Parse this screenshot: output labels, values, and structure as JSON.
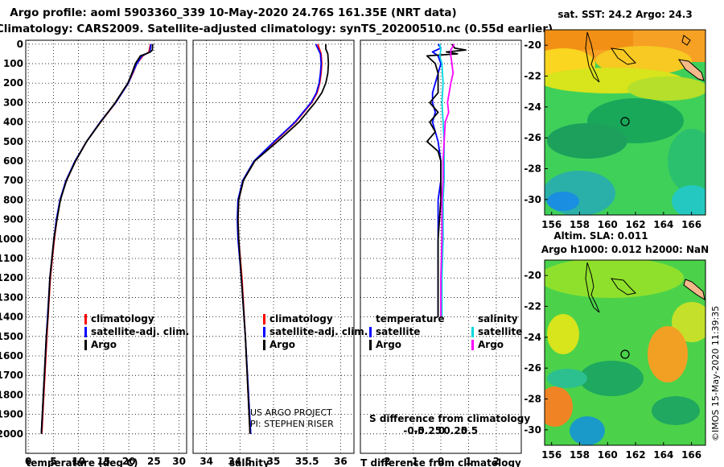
{
  "titles": {
    "line1": "Argo profile: aoml 5903360_339 10-May-2020 24.76S 161.35E (NRT data)",
    "line2": "Climatology: CARS2009. Satellite-adjusted climatology: synTS_20200510.nc (0.55d earlier)"
  },
  "colors": {
    "climatology": "#ff0000",
    "satellite": "#0000ff",
    "argo": "#000000",
    "sal_satellite": "#00d8e0",
    "sal_argo": "#ff00ff"
  },
  "chart_data": [
    {
      "type": "line",
      "title": "",
      "xlabel": "temperature (deg C)",
      "ylabel": "",
      "xlim": [
        -0.5,
        31.5
      ],
      "ylim": [
        2100,
        -20
      ],
      "xticks": [
        0,
        5,
        10,
        15,
        20,
        25,
        30
      ],
      "yticks": [
        0,
        100,
        200,
        300,
        400,
        500,
        600,
        700,
        800,
        900,
        1000,
        1100,
        1200,
        1300,
        1400,
        1500,
        1600,
        1700,
        1800,
        1900,
        2000
      ],
      "legend": [
        "climatology",
        "satellite-adj. clim.",
        "Argo"
      ],
      "series": [
        {
          "name": "climatology",
          "depth": [
            0,
            40,
            60,
            100,
            150,
            200,
            300,
            400,
            500,
            600,
            700,
            800,
            900,
            1000,
            1100,
            1200,
            1500,
            2000
          ],
          "values": [
            24.3,
            24.0,
            22.8,
            21.6,
            20.8,
            19.9,
            17.4,
            14.4,
            11.6,
            9.4,
            7.6,
            6.3,
            5.7,
            5.2,
            4.8,
            4.4,
            3.7,
            2.7
          ]
        },
        {
          "name": "satellite-adj. clim.",
          "depth": [
            0,
            40,
            60,
            100,
            150,
            200,
            300,
            400,
            500,
            600,
            700,
            800,
            900,
            1000,
            1100,
            1200,
            1500,
            2000
          ],
          "values": [
            24.4,
            24.2,
            22.6,
            21.6,
            20.7,
            19.9,
            17.4,
            14.3,
            11.6,
            9.3,
            7.5,
            6.3,
            5.6,
            5.1,
            4.7,
            4.3,
            3.6,
            2.6
          ]
        },
        {
          "name": "Argo",
          "depth": [
            0,
            10,
            30,
            40,
            50,
            60,
            100,
            150,
            200,
            300,
            400,
            500,
            600,
            700,
            800,
            900,
            1000,
            1100,
            1200,
            1400,
            1500,
            2000
          ],
          "values": [
            24.8,
            24.7,
            24.7,
            24.3,
            23.4,
            22.3,
            21.3,
            20.6,
            19.8,
            17.3,
            14.4,
            11.6,
            9.4,
            7.6,
            6.4,
            5.7,
            5.1,
            4.7,
            4.3,
            3.9,
            3.6,
            2.6
          ]
        }
      ]
    },
    {
      "type": "line",
      "title": "",
      "xlabel": "salinity",
      "ylabel": "",
      "xlim": [
        33.8,
        36.2
      ],
      "ylim": [
        2100,
        -20
      ],
      "xticks": [
        34,
        34.5,
        35,
        35.5,
        36
      ],
      "legend": [
        "climatology",
        "satellite-adj. clim.",
        "Argo"
      ],
      "annotation": [
        "US ARGO PROJECT",
        "PI: STEPHEN RISER"
      ],
      "series": [
        {
          "name": "climatology",
          "depth": [
            0,
            50,
            100,
            150,
            200,
            250,
            300,
            400,
            500,
            600,
            700,
            800,
            900,
            1000,
            1200,
            1500,
            2000
          ],
          "values": [
            35.66,
            35.71,
            35.72,
            35.71,
            35.69,
            35.65,
            35.57,
            35.33,
            35.02,
            34.72,
            34.55,
            34.48,
            34.47,
            34.48,
            34.53,
            34.58,
            34.65
          ]
        },
        {
          "name": "satellite-adj. clim.",
          "depth": [
            0,
            50,
            100,
            150,
            200,
            250,
            300,
            400,
            500,
            600,
            700,
            800,
            900,
            1000,
            1200,
            1500,
            2000
          ],
          "values": [
            35.63,
            35.7,
            35.71,
            35.7,
            35.68,
            35.64,
            35.56,
            35.32,
            35.01,
            34.71,
            34.54,
            34.47,
            34.46,
            34.47,
            34.52,
            34.58,
            34.66
          ]
        },
        {
          "name": "Argo",
          "depth": [
            0,
            25,
            50,
            100,
            150,
            200,
            250,
            300,
            400,
            500,
            600,
            700,
            800,
            900,
            1000,
            1200,
            1500,
            2000
          ],
          "values": [
            35.78,
            35.78,
            35.81,
            35.82,
            35.81,
            35.78,
            35.72,
            35.62,
            35.38,
            35.06,
            34.72,
            34.55,
            34.48,
            34.47,
            34.48,
            34.52,
            34.58,
            34.65
          ]
        }
      ]
    },
    {
      "type": "line",
      "title": "",
      "xlabel": "T difference from climatology",
      "ylabel": "",
      "xlim": [
        -2.9,
        2.9
      ],
      "ylim": [
        2100,
        -20
      ],
      "xticks": [
        -2,
        -1,
        0,
        1,
        2
      ],
      "top_xlabel": "S difference from climatology",
      "top_xticks": [
        "-0.5",
        "-0.25",
        "0",
        "0.25",
        "0.5"
      ],
      "legend": [
        "temperature",
        "satellite",
        "Argo",
        "salinity",
        "satellite",
        "Argo"
      ],
      "series": [
        {
          "name": "T satellite",
          "depth": [
            0,
            20,
            40,
            60,
            100,
            150,
            200,
            250,
            300,
            350,
            400,
            450,
            500,
            600,
            700,
            800,
            1000,
            1200,
            1400
          ],
          "values": [
            -0.1,
            0.0,
            -0.3,
            -0.1,
            0.0,
            -0.1,
            -0.2,
            -0.3,
            -0.3,
            -0.2,
            -0.3,
            -0.2,
            -0.1,
            0.0,
            0.0,
            -0.1,
            -0.1,
            -0.1,
            -0.1
          ]
        },
        {
          "name": "T Argo",
          "depth": [
            0,
            20,
            30,
            40,
            50,
            60,
            100,
            150,
            200,
            250,
            300,
            350,
            400,
            450,
            500,
            550,
            600,
            700,
            800,
            1000,
            1200,
            1400
          ],
          "values": [
            0.4,
            0.5,
            0.9,
            0.2,
            0.6,
            -0.5,
            -0.2,
            -0.1,
            -0.1,
            -0.1,
            -0.4,
            -0.1,
            -0.4,
            -0.2,
            -0.5,
            -0.1,
            0.0,
            0.0,
            0.0,
            -0.1,
            -0.1,
            -0.1
          ]
        },
        {
          "name": "S satellite",
          "depth": [
            0,
            30,
            60,
            100,
            200,
            300,
            400,
            500,
            600,
            700,
            800,
            1000,
            1200,
            1400
          ],
          "values": [
            -0.01,
            0.0,
            -0.01,
            0.01,
            0.02,
            0.01,
            0.02,
            0.03,
            0.03,
            0.03,
            0.02,
            0.02,
            0.01,
            0.01
          ]
        },
        {
          "name": "S Argo",
          "depth": [
            0,
            30,
            60,
            100,
            150,
            200,
            300,
            350,
            400,
            500,
            600,
            700,
            800,
            1000,
            1200,
            1400
          ],
          "values": [
            0.12,
            0.09,
            0.09,
            0.1,
            0.11,
            0.09,
            0.06,
            0.07,
            0.04,
            0.03,
            0.02,
            0.02,
            0.01,
            0.01,
            0.0,
            0.0
          ]
        }
      ]
    },
    {
      "type": "heatmap",
      "title": "sat. SST: 24.2 Argo: 24.3",
      "xticks": [
        156,
        158,
        160,
        162,
        164,
        166
      ],
      "yticks": [
        -20,
        -22,
        -24,
        -26,
        -28,
        -30
      ],
      "marker": {
        "lon": 161.35,
        "lat": -24.76
      }
    },
    {
      "type": "heatmap",
      "title_lines": [
        "Altim. SLA: 0.011",
        "Argo h1000: 0.012 h2000: NaN"
      ],
      "xticks": [
        156,
        158,
        160,
        162,
        164,
        166
      ],
      "yticks": [
        -20,
        -22,
        -24,
        -26,
        -28,
        -30
      ],
      "marker": {
        "lon": 161.35,
        "lat": -24.76
      }
    }
  ],
  "panel_labels": {
    "legend1": {
      "clim": "climatology",
      "sat": "satellite-adj. clim.",
      "argo": "Argo"
    },
    "legend3": {
      "temp": "temperature",
      "sal": "salinity",
      "sat": "satellite",
      "argo": "Argo"
    }
  },
  "credit": "©IMOS 15-May-2020 11:39:35"
}
